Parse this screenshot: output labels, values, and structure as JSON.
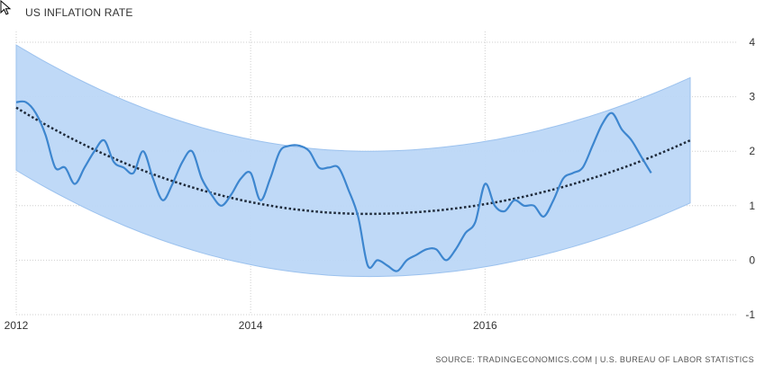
{
  "chart_data": {
    "type": "line",
    "title": "US INFLATION RATE",
    "source_note": "SOURCE: TRADINGECONOMICS.COM | U.S. BUREAU OF LABOR STATISTICS",
    "xlim": [
      2012.0,
      2017.75
    ],
    "ylim": [
      -1,
      4
    ],
    "x_ticks": [
      2012,
      2014,
      2016
    ],
    "x_tick_labels": [
      "2012",
      "2014",
      "2016"
    ],
    "y_ticks": [
      4,
      3,
      2,
      1,
      0,
      -1
    ],
    "y_tick_labels": [
      "4",
      "3",
      "2",
      "1",
      "0",
      "-1"
    ],
    "grid": "dotted",
    "y_axis_side": "right",
    "colors": {
      "series": "#3d86cf",
      "band_fill": "#bcd7f7",
      "band_edge": "#9cc2ee",
      "trend": "#1f2a3a"
    },
    "series": [
      {
        "x": [
          2012.0,
          2012.083,
          2012.167,
          2012.25,
          2012.333,
          2012.417,
          2012.5,
          2012.583,
          2012.667,
          2012.75,
          2012.833,
          2012.917,
          2013.0,
          2013.083,
          2013.167,
          2013.25,
          2013.333,
          2013.417,
          2013.5,
          2013.583,
          2013.667,
          2013.75,
          2013.833,
          2013.917,
          2014.0,
          2014.083,
          2014.167,
          2014.25,
          2014.333,
          2014.417,
          2014.5,
          2014.583,
          2014.667,
          2014.75,
          2014.833,
          2014.917,
          2015.0,
          2015.083,
          2015.167,
          2015.25,
          2015.333,
          2015.417,
          2015.5,
          2015.583,
          2015.667,
          2015.75,
          2015.833,
          2015.917,
          2016.0,
          2016.083,
          2016.167,
          2016.25,
          2016.333,
          2016.417,
          2016.5,
          2016.583,
          2016.667,
          2016.75,
          2016.833,
          2016.917,
          2017.0,
          2017.083,
          2017.167,
          2017.25,
          2017.333,
          2017.417
        ],
        "values": [
          2.9,
          2.9,
          2.7,
          2.3,
          1.7,
          1.7,
          1.4,
          1.7,
          2.0,
          2.2,
          1.8,
          1.7,
          1.6,
          2.0,
          1.5,
          1.1,
          1.4,
          1.8,
          2.0,
          1.5,
          1.2,
          1.0,
          1.2,
          1.5,
          1.6,
          1.1,
          1.5,
          2.0,
          2.1,
          2.1,
          2.0,
          1.7,
          1.7,
          1.7,
          1.3,
          0.8,
          -0.1,
          0.0,
          -0.1,
          -0.2,
          0.0,
          0.1,
          0.2,
          0.2,
          0.0,
          0.2,
          0.5,
          0.7,
          1.4,
          1.0,
          0.9,
          1.1,
          1.0,
          1.0,
          0.8,
          1.1,
          1.5,
          1.6,
          1.7,
          2.1,
          2.5,
          2.7,
          2.4,
          2.2,
          1.9,
          1.6
        ]
      }
    ],
    "trend": {
      "start": 2.8,
      "min_x": 2015.0,
      "min_value": 0.85,
      "end": 2.2
    },
    "band": {
      "upper_start": 3.95,
      "upper_min": 2.0,
      "upper_end": 3.35,
      "lower_start": 1.65,
      "lower_min": -0.3,
      "lower_end": 1.05
    }
  }
}
